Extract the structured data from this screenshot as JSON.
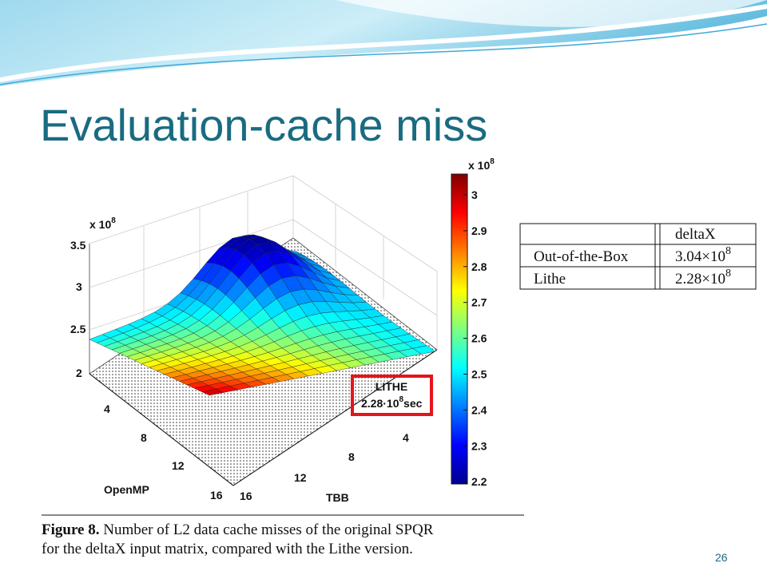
{
  "header": {
    "title": "Evaluation-cache miss"
  },
  "figure": {
    "z_axis": {
      "multiplier": "x 10",
      "exponent": "8",
      "ticks": [
        "3.5",
        "3",
        "2.5",
        "2"
      ]
    },
    "openmp_axis": {
      "label": "OpenMP",
      "ticks": [
        "4",
        "8",
        "12",
        "16"
      ]
    },
    "tbb_axis": {
      "label": "TBB",
      "ticks": [
        "16",
        "12",
        "8",
        "4"
      ]
    },
    "colorbar": {
      "multiplier": "x 10",
      "exponent": "8",
      "ticks": [
        "3",
        "2.9",
        "2.8",
        "2.7",
        "2.6",
        "2.5",
        "2.4",
        "2.3",
        "2.2"
      ]
    },
    "annotation": {
      "name": "LITHE",
      "value": "2.28·10",
      "exponent": "8",
      "unit": "sec"
    },
    "caption": {
      "label": "Figure 8.",
      "lines": [
        "Number of L2 data cache misses of the original SPQR",
        "for the deltaX input matrix, compared with the Lithe version."
      ]
    }
  },
  "table": {
    "header": "deltaX",
    "rows": [
      [
        "Out-of-the-Box",
        "3.04×10",
        "8"
      ],
      [
        "Lithe",
        "2.28×10",
        "8"
      ]
    ]
  },
  "page_number": "26"
}
